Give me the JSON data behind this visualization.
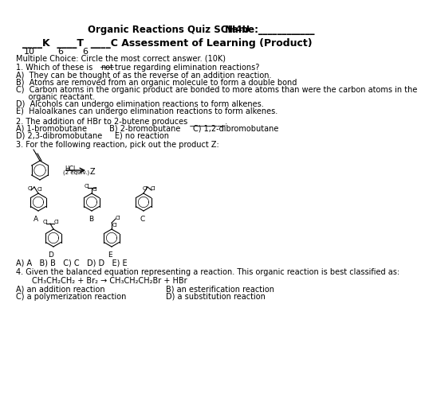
{
  "bg_color": "#ffffff",
  "text_color": "#000000",
  "title": "Organic Reactions Quiz SCH4U",
  "name_label": "Name:____________",
  "subtitle_line": "____K  ____T  ____C Assessment of Learning (Product)",
  "scores_line": "10        6        6",
  "mc_line": "Multiple Choice: Circle the most correct answer. (10K)",
  "q1_line": "1. Which of these is not true regarding elimination reactions?",
  "q1a": "A)  They can be thought of as the reverse of an addition reaction.",
  "q1b": "B)  Atoms are removed from an organic molecule to form a double bond",
  "q1c1": "C)  Carbon atoms in the organic product are bonded to more atoms than were the carbon atoms in the",
  "q1c2": "     organic reactant.",
  "q1d": "D)  Alcohols can undergo elimination reactions to form alkenes.",
  "q1e": "E)  Haloalkanes can undergo elimination reactions to form alkenes.",
  "q2_line": "2. The addition of HBr to 2-butene produces _________.",
  "q2_ans1": "A) 1-bromobutane         B) 2-bromobutane     C) 1,2-dibromobutane",
  "q2_ans2": "D) 2,3-dibromobutane     E) no reaction",
  "q3_line": "3. For the following reaction, pick out the product Z:",
  "q3_answers": "A) A   B) B   C) C   D) D   E) E",
  "q4_line": "4. Given the balanced equation representing a reaction. This organic reaction is best classified as:",
  "q4_eq": "        CH₃CH₂CH₂ + Br₂ → CH₃CH₂CH₂Br + HBr",
  "q4a": "A) an addition reaction",
  "q4b": "B) an esterification reaction",
  "q4c": "C) a polymerization reaction",
  "q4d": "D) a substitution reaction"
}
